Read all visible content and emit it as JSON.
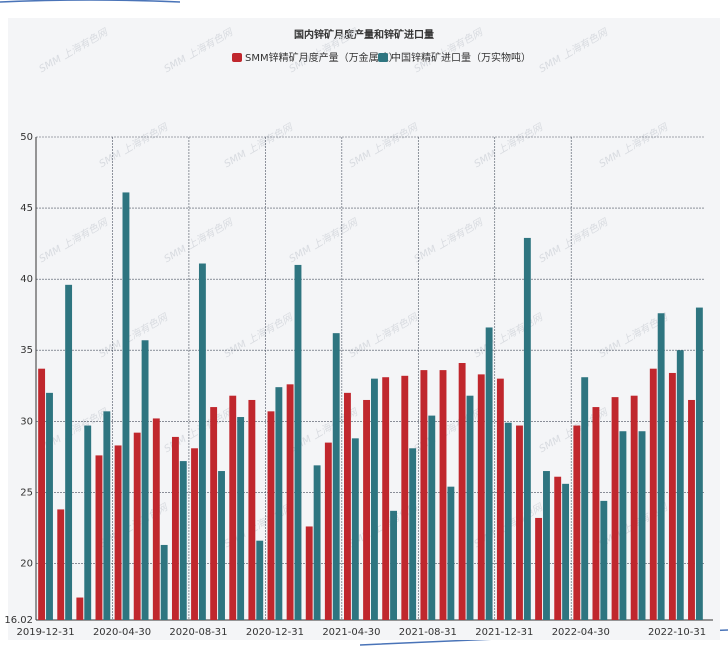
{
  "chart_data": {
    "type": "bar",
    "title": "国内锌矿月度产量和锌矿进口量",
    "watermark": "SMM 上海有色网",
    "categories": [
      "2019-12-31",
      null,
      null,
      null,
      "2020-04-30",
      null,
      null,
      null,
      "2020-08-31",
      null,
      null,
      null,
      "2020-12-31",
      null,
      null,
      null,
      "2021-04-30",
      null,
      null,
      null,
      "2021-08-31",
      null,
      null,
      null,
      "2021-12-31",
      null,
      null,
      null,
      "2022-04-30",
      null,
      null,
      null,
      null,
      null,
      "2022-10-31"
    ],
    "series": [
      {
        "name": "SMM锌精矿月度产量（万金属吨）",
        "color": "#c0272d",
        "values": [
          33.7,
          23.8,
          17.6,
          27.6,
          28.3,
          29.2,
          30.2,
          28.9,
          28.1,
          31.0,
          31.8,
          31.5,
          30.7,
          32.6,
          22.6,
          28.5,
          32.0,
          31.5,
          33.1,
          33.2,
          33.6,
          33.6,
          34.1,
          33.3,
          33.0,
          29.7,
          23.2,
          26.1,
          29.7,
          31.0,
          31.7,
          31.8,
          33.7,
          33.4,
          31.5
        ]
      },
      {
        "name": "中国锌精矿进口量（万实物吨）",
        "color": "#2e7580",
        "values": [
          32.0,
          39.6,
          29.7,
          30.7,
          46.1,
          35.7,
          21.3,
          27.2,
          41.1,
          26.5,
          30.3,
          21.6,
          32.4,
          41.0,
          26.9,
          36.2,
          28.8,
          33.0,
          23.7,
          28.1,
          30.4,
          25.4,
          31.8,
          36.6,
          29.9,
          42.9,
          26.5,
          25.6,
          33.1,
          24.4,
          29.3,
          29.3,
          37.6,
          35.0,
          38.0
        ]
      }
    ],
    "ylim": [
      16.02,
      50
    ],
    "yticks": [
      16.02,
      20,
      25,
      30,
      35,
      40,
      45,
      50
    ],
    "grid": true
  }
}
